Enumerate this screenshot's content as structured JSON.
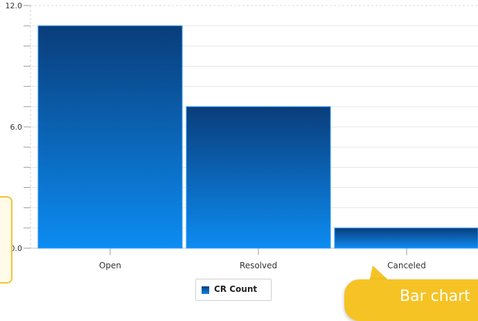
{
  "chart_data": {
    "type": "bar",
    "categories": [
      "Open",
      "Resolved",
      "Canceled"
    ],
    "series": [
      {
        "name": "CR Count",
        "values": [
          11,
          7,
          1
        ],
        "color": "#0c82e8"
      }
    ],
    "ylim": [
      0,
      12
    ],
    "y_tick_labels": [
      "0.0",
      "6.0",
      "12.0"
    ],
    "y_major_ticks": [
      0,
      6,
      12
    ],
    "y_minor_step": 1,
    "grid": true,
    "legend_position": "bottom-center",
    "bar_gradient": [
      "#0a3d7a",
      "#0c8cf2"
    ]
  },
  "overlay": {
    "tooltip_text": "Bar chart",
    "tooltip_color": "#f6c325"
  }
}
